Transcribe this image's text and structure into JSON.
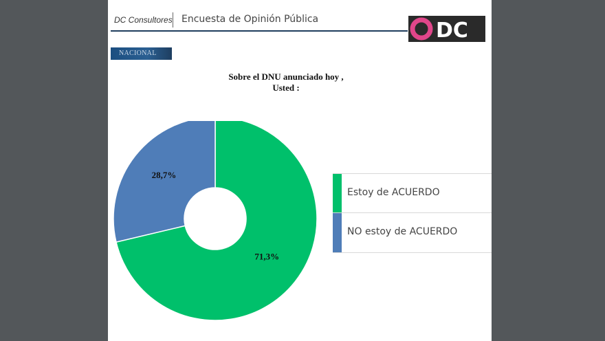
{
  "header": {
    "brand": "DC Consultores",
    "subtitle": "Encuesta de Opinión Pública",
    "logo_text": "ODC"
  },
  "section_tag": "NACIONAL",
  "colors": {
    "acuerdo": "#00c06b",
    "no_acuerdo": "#4f7db8",
    "logo_ring": "#e0468a"
  },
  "chart_data": {
    "type": "pie",
    "title_lines": [
      "Sobre el DNU anunciado hoy ,",
      "Usted :"
    ],
    "slices": [
      {
        "label": "Estoy de ACUERDO",
        "value": 71.3,
        "value_label": "71,3%",
        "color": "#00c06b"
      },
      {
        "label": "NO estoy de ACUERDO",
        "value": 28.7,
        "value_label": "28,7%",
        "color": "#4f7db8"
      }
    ],
    "donut": true,
    "legend_position": "right"
  }
}
